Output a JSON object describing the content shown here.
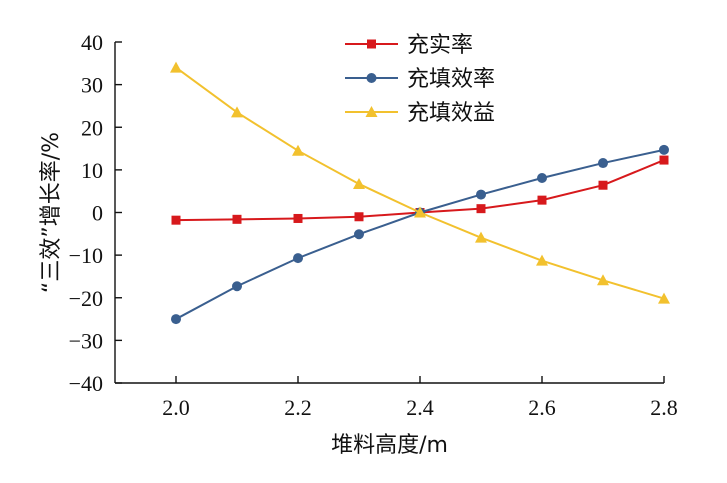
{
  "chart_data": {
    "type": "line",
    "xlabel": "堆料高度/m",
    "ylabel": "“三效”增长率/%",
    "xlim": [
      1.9,
      2.8
    ],
    "ylim": [
      -40,
      40
    ],
    "x_ticks": [
      2.0,
      2.2,
      2.4,
      2.6,
      2.8
    ],
    "x_tick_labels": [
      "2.0",
      "2.2",
      "2.4",
      "2.6",
      "2.8"
    ],
    "y_ticks": [
      40,
      30,
      20,
      10,
      0,
      -10,
      -20,
      -30,
      -40
    ],
    "y_tick_labels": [
      "40",
      "30",
      "20",
      "10",
      "0",
      "−10",
      "−20",
      "−30",
      "−40"
    ],
    "x": [
      2.0,
      2.1,
      2.2,
      2.3,
      2.4,
      2.5,
      2.6,
      2.7,
      2.8
    ],
    "legend_position": "top-center",
    "grid": false,
    "series": [
      {
        "name": "充实率",
        "marker": "square",
        "color": "#d7191c",
        "values": [
          -1.8,
          -1.6,
          -1.4,
          -1.0,
          0.0,
          0.9,
          2.9,
          6.4,
          12.3
        ]
      },
      {
        "name": "充填效率",
        "marker": "circle",
        "color": "#3a5f8f",
        "values": [
          -25.0,
          -17.3,
          -10.7,
          -5.1,
          0.0,
          4.2,
          8.1,
          11.6,
          14.7
        ]
      },
      {
        "name": "充填效益",
        "marker": "triangle",
        "color": "#f2c12e",
        "values": [
          34.0,
          23.5,
          14.5,
          6.7,
          0.0,
          -5.9,
          -11.3,
          -15.9,
          -20.2
        ]
      }
    ]
  }
}
